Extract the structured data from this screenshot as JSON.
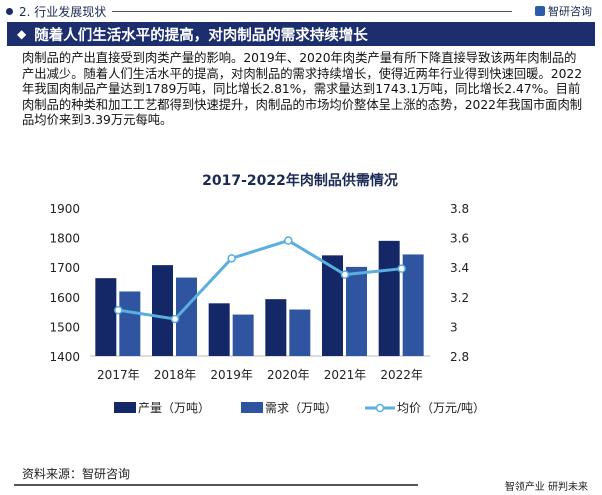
{
  "header": {
    "section": "2. 行业发展现状",
    "brand": "智研咨询"
  },
  "banner": {
    "title": "随着人们生活水平的提高，对肉制品的需求持续增长"
  },
  "paragraph": "肉制品的产出直接受到肉类产量的影响。2019年、2020年肉类产量有所下降直接导致该两年肉制品的产出减少。随着人们生活水平的提高，对肉制品的需求持续增长，使得近两年行业得到快速回暖。2022年我国肉制品产量达到1789万吨，同比增长2.81%，需求量达到1743.1万吨，同比增长2.47%。目前肉制品的种类和加工工艺都得到快速提升，肉制品的市场均价整体呈上涨的态势，2022年我国市面肉制品均价来到3.39万元每吨。",
  "footer": {
    "source": "资料来源：智研咨询",
    "slogan": "智领产业 研判未来"
  },
  "chart_data": {
    "type": "bar",
    "title": "2017-2022年肉制品供需情况",
    "categories": [
      "2017年",
      "2018年",
      "2019年",
      "2020年",
      "2021年",
      "2022年"
    ],
    "series": [
      {
        "name": "产量（万吨）",
        "type": "bar",
        "axis": "left",
        "color": "#142766",
        "values": [
          1663,
          1707,
          1578,
          1592,
          1740,
          1789
        ]
      },
      {
        "name": "需求（万吨）",
        "type": "bar",
        "axis": "left",
        "color": "#2f55a0",
        "values": [
          1618,
          1665,
          1540,
          1557,
          1701,
          1743.1
        ]
      },
      {
        "name": "均价（万元/吨）",
        "type": "line",
        "axis": "right",
        "color": "#5aaee0",
        "values": [
          3.11,
          3.05,
          3.46,
          3.58,
          3.35,
          3.39
        ]
      }
    ],
    "ylim_left": [
      1400,
      1900
    ],
    "yticks_left": [
      "1400",
      "1500",
      "1600",
      "1700",
      "1800",
      "1900"
    ],
    "ylim_right": [
      2.8,
      3.8
    ],
    "yticks_right": [
      "2.8",
      "3",
      "3.2",
      "3.4",
      "3.6",
      "3.8"
    ],
    "legend": "bottom",
    "grid": false
  }
}
